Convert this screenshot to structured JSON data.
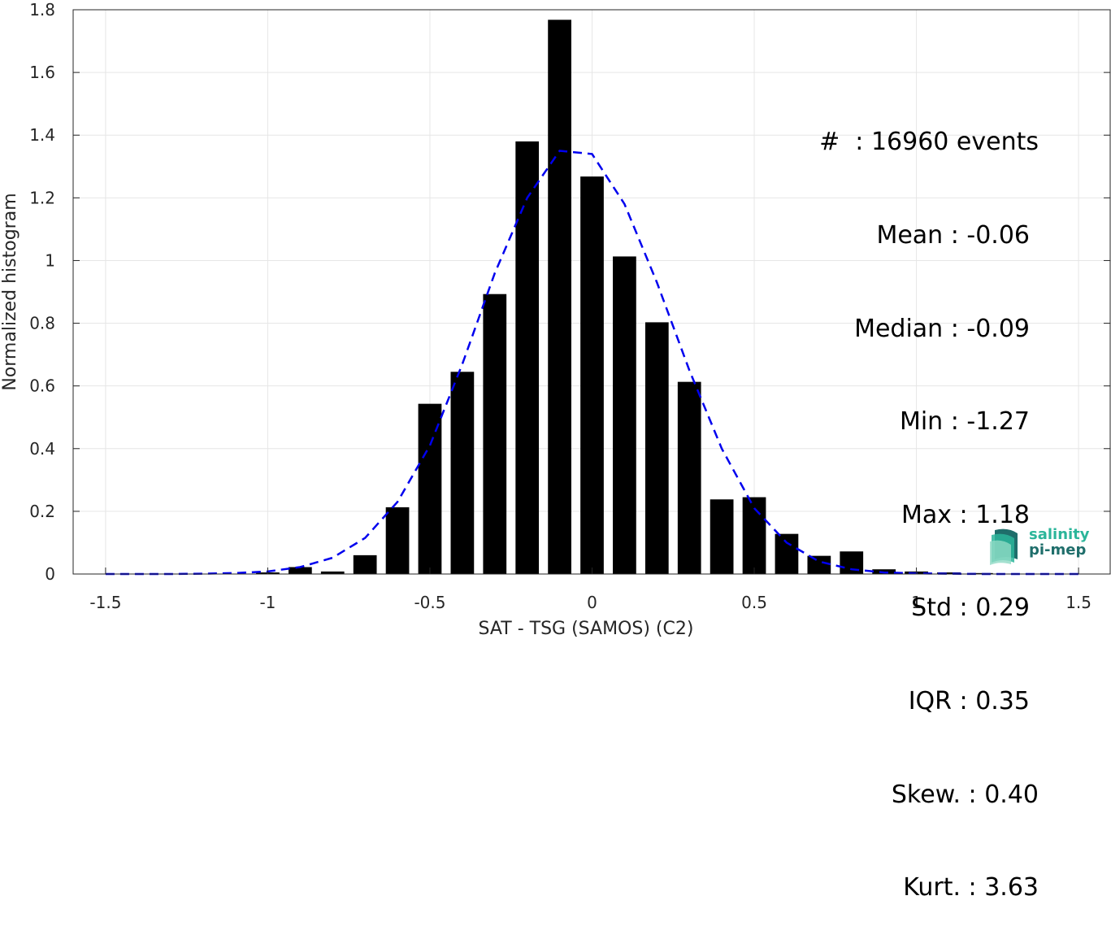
{
  "chart_data": {
    "type": "bar",
    "xlabel": "SAT - TSG (SAMOS) (C2)",
    "ylabel": "Normalized histogram",
    "xlim": [
      -1.6,
      1.6
    ],
    "ylim": [
      0,
      1.8
    ],
    "xticks": [
      -1.5,
      -1,
      -0.5,
      0,
      0.5,
      1,
      1.5
    ],
    "xtick_labels": [
      "-1.5",
      "-1",
      "-0.5",
      "0",
      "0.5",
      "1",
      "1.5"
    ],
    "yticks": [
      0,
      0.2,
      0.4,
      0.6,
      0.8,
      1,
      1.2,
      1.4,
      1.6,
      1.8
    ],
    "ytick_labels": [
      "0",
      "0.2",
      "0.4",
      "0.6",
      "0.8",
      "1",
      "1.2",
      "1.4",
      "1.6",
      "1.8"
    ],
    "grid": true,
    "bars": {
      "color": "#000000",
      "x": [
        -1.0,
        -0.9,
        -0.8,
        -0.7,
        -0.6,
        -0.5,
        -0.4,
        -0.3,
        -0.2,
        -0.1,
        0.0,
        0.1,
        0.2,
        0.3,
        0.4,
        0.5,
        0.6,
        0.7,
        0.8,
        0.9,
        1.0,
        1.1,
        1.2
      ],
      "values": [
        0.005,
        0.022,
        0.008,
        0.06,
        0.213,
        0.543,
        0.645,
        0.893,
        1.38,
        1.768,
        1.268,
        1.013,
        0.803,
        0.613,
        0.238,
        0.245,
        0.128,
        0.058,
        0.072,
        0.015,
        0.008,
        0.005,
        0.003
      ]
    },
    "fit_curve": {
      "style": "dashed",
      "color": "#0000ee",
      "x": [
        -1.5,
        -1.4,
        -1.3,
        -1.2,
        -1.1,
        -1.0,
        -0.9,
        -0.8,
        -0.7,
        -0.6,
        -0.5,
        -0.4,
        -0.3,
        -0.2,
        -0.1,
        0.0,
        0.1,
        0.2,
        0.3,
        0.4,
        0.5,
        0.6,
        0.7,
        0.8,
        0.9,
        1.0,
        1.1,
        1.2,
        1.3,
        1.4,
        1.5
      ],
      "y": [
        0.0,
        0.0,
        0.0,
        0.001,
        0.003,
        0.008,
        0.022,
        0.052,
        0.115,
        0.23,
        0.41,
        0.67,
        0.96,
        1.2,
        1.35,
        1.34,
        1.18,
        0.93,
        0.65,
        0.4,
        0.21,
        0.1,
        0.04,
        0.015,
        0.005,
        0.002,
        0.001,
        0.0,
        0.0,
        0.0,
        0.0
      ]
    }
  },
  "stats": [
    "#  : 16960 events",
    "Mean : -0.06",
    "Median : -0.09",
    "Min : -1.27",
    "Max : 1.18",
    "Std : 0.29",
    "IQR : 0.35",
    "Skew. : 0.40",
    "Kurt. : 3.63"
  ],
  "logo": {
    "line1": "salinity",
    "line2": "pi-mep",
    "colors": [
      "#2bb59a",
      "#1f6e6b"
    ]
  }
}
